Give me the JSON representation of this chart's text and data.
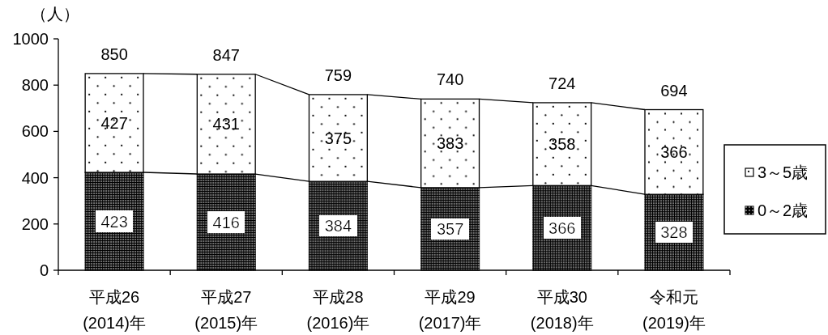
{
  "chart_data": {
    "type": "bar",
    "ylabel": "（人）",
    "categories": [
      "平成26\n(2014)年",
      "平成27\n(2015)年",
      "平成28\n(2016)年",
      "平成29\n(2017)年",
      "平成30\n(2018)年",
      "令和元\n(2019)年"
    ],
    "series": [
      {
        "name": "0～2歳",
        "color": "#000000",
        "values": [
          423,
          416,
          384,
          357,
          366,
          328
        ]
      },
      {
        "name": "3～5歳",
        "color": "#ffffff",
        "values": [
          427,
          431,
          375,
          383,
          358,
          366
        ]
      }
    ],
    "stacked": true,
    "ylim": [
      0,
      1000
    ],
    "yticks": [
      0,
      200,
      400,
      600,
      800,
      1000
    ],
    "data_labels": true,
    "totals": [
      "850",
      "847",
      "759",
      "740",
      "724",
      "694"
    ],
    "legend": "right"
  }
}
